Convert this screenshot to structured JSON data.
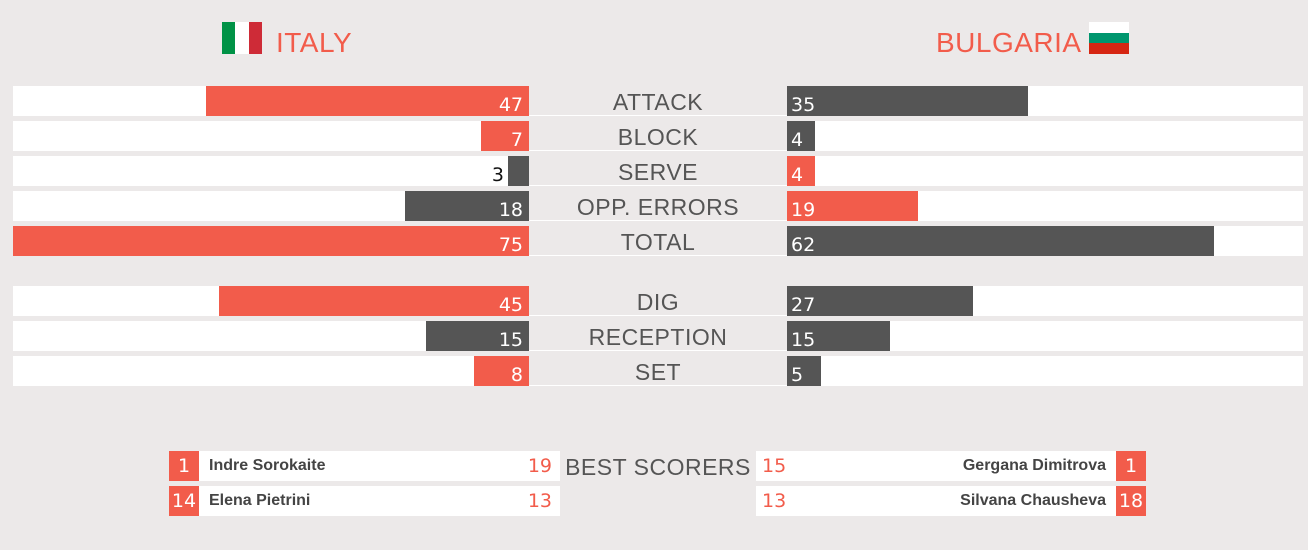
{
  "teams": {
    "home": {
      "name": "ITALY",
      "flag_colors": [
        "#009246",
        "#ffffff",
        "#ce2b37"
      ]
    },
    "away": {
      "name": "BULGARIA",
      "flag_colors": [
        "#ffffff",
        "#00966e",
        "#d62612"
      ]
    }
  },
  "colors": {
    "accent": "#f25c4b",
    "dark": "#555555",
    "track": "#ffffff",
    "background": "#ece9e9"
  },
  "scale_max": 75,
  "stats": [
    {
      "label": "ATTACK",
      "home": "47",
      "away": "35",
      "home_value": 47,
      "away_value": 35,
      "home_color": "accent",
      "away_color": "dark"
    },
    {
      "label": "BLOCK",
      "home": "7",
      "away": "4",
      "home_value": 7,
      "away_value": 4,
      "home_color": "accent",
      "away_color": "dark"
    },
    {
      "label": "SERVE",
      "home": "3",
      "away": "4",
      "home_value": 3,
      "away_value": 4,
      "home_color": "dark",
      "away_color": "accent"
    },
    {
      "label": "OPP. ERRORS",
      "home": "18",
      "away": "19",
      "home_value": 18,
      "away_value": 19,
      "home_color": "dark",
      "away_color": "accent"
    },
    {
      "label": "TOTAL",
      "home": "75",
      "away": "62",
      "home_value": 75,
      "away_value": 62,
      "home_color": "accent",
      "away_color": "dark"
    },
    {
      "label": "DIG",
      "home": "45",
      "away": "27",
      "home_value": 45,
      "away_value": 27,
      "home_color": "accent",
      "away_color": "dark"
    },
    {
      "label": "RECEPTION",
      "home": "15",
      "away": "15",
      "home_value": 15,
      "away_value": 15,
      "home_color": "dark",
      "away_color": "dark"
    },
    {
      "label": "SET",
      "home": "8",
      "away": "5",
      "home_value": 8,
      "away_value": 5,
      "home_color": "accent",
      "away_color": "dark"
    }
  ],
  "best_scorers": {
    "label": "BEST SCORERS",
    "home": [
      {
        "number": "1",
        "name": "Indre Sorokaite",
        "points": "19"
      },
      {
        "number": "14",
        "name": "Elena Pietrini",
        "points": "13"
      }
    ],
    "away": [
      {
        "number": "1",
        "name": "Gergana Dimitrova",
        "points": "15"
      },
      {
        "number": "18",
        "name": "Silvana Chausheva",
        "points": "13"
      }
    ]
  }
}
